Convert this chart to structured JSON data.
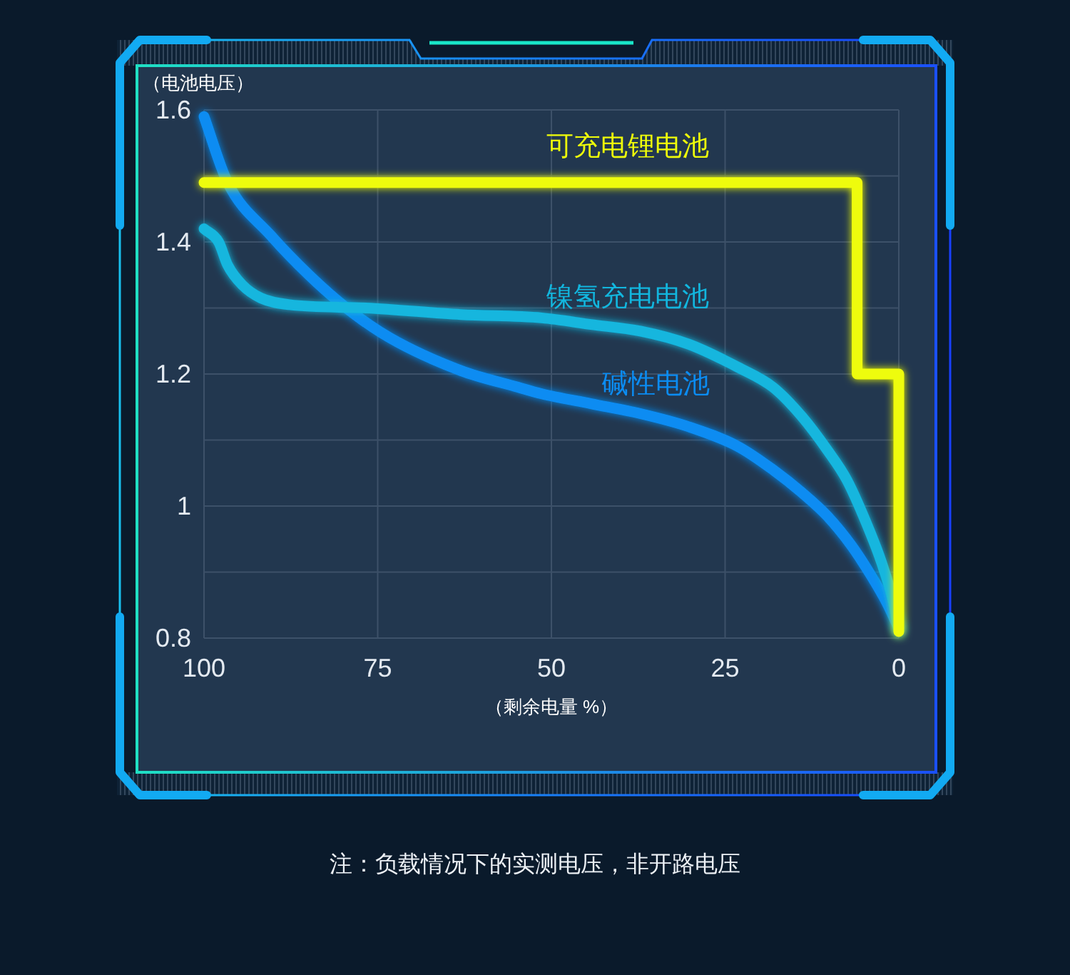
{
  "chart_data": {
    "type": "line",
    "ylabel": "（电池电压）",
    "xlabel": "（剩余电量 %）",
    "xlim": [
      100,
      0
    ],
    "xticks": [
      100,
      75,
      50,
      25,
      0
    ],
    "ylim": [
      0.8,
      1.6
    ],
    "yticks": [
      0.8,
      {
        "value": 0.9,
        "label": null
      },
      1,
      {
        "value": 1.1,
        "label": null
      },
      1.2,
      {
        "value": 1.3,
        "label": null
      },
      1.4,
      {
        "value": 1.5,
        "label": null
      },
      1.6
    ],
    "grid": true,
    "legend": false,
    "marker": "none",
    "line_style": "solid",
    "annotations": [
      "注：负载情况下的实测电压，非开路电压"
    ],
    "series": [
      {
        "name": "碱性电池",
        "color": "#0b8cf2",
        "x": [
          100,
          96.6,
          90.4,
          84.9,
          79.5,
          73.3,
          63,
          54.8,
          51.4,
          44.3,
          37.2,
          30.2,
          23.1,
          18.1,
          13.9,
          10.3,
          6.8,
          4,
          1.8,
          0
        ],
        "values": [
          1.59,
          1.49,
          1.41,
          1.35,
          1.3,
          1.255,
          1.205,
          1.18,
          1.17,
          1.155,
          1.14,
          1.12,
          1.09,
          1.055,
          1.02,
          0.985,
          0.94,
          0.895,
          0.855,
          0.815
        ]
      },
      {
        "name": "镍氢充电电池",
        "color": "#12b6de",
        "x": [
          100,
          97.9,
          96.6,
          94.5,
          91.8,
          87.7,
          76.7,
          63,
          51.4,
          44.3,
          37.2,
          30.2,
          23.1,
          18.1,
          13.9,
          10.3,
          7.5,
          4.7,
          2.5,
          0.8,
          0
        ],
        "values": [
          1.42,
          1.4,
          1.365,
          1.335,
          1.315,
          1.305,
          1.3,
          1.29,
          1.285,
          1.275,
          1.265,
          1.245,
          1.21,
          1.18,
          1.135,
          1.085,
          1.04,
          0.975,
          0.915,
          0.855,
          0.81
        ]
      },
      {
        "name": "可充电锂电池",
        "color": "#eefc0a",
        "x": [
          100,
          6,
          6,
          0,
          0
        ],
        "values": [
          1.49,
          1.49,
          1.2,
          1.2,
          0.81
        ]
      }
    ]
  }
}
